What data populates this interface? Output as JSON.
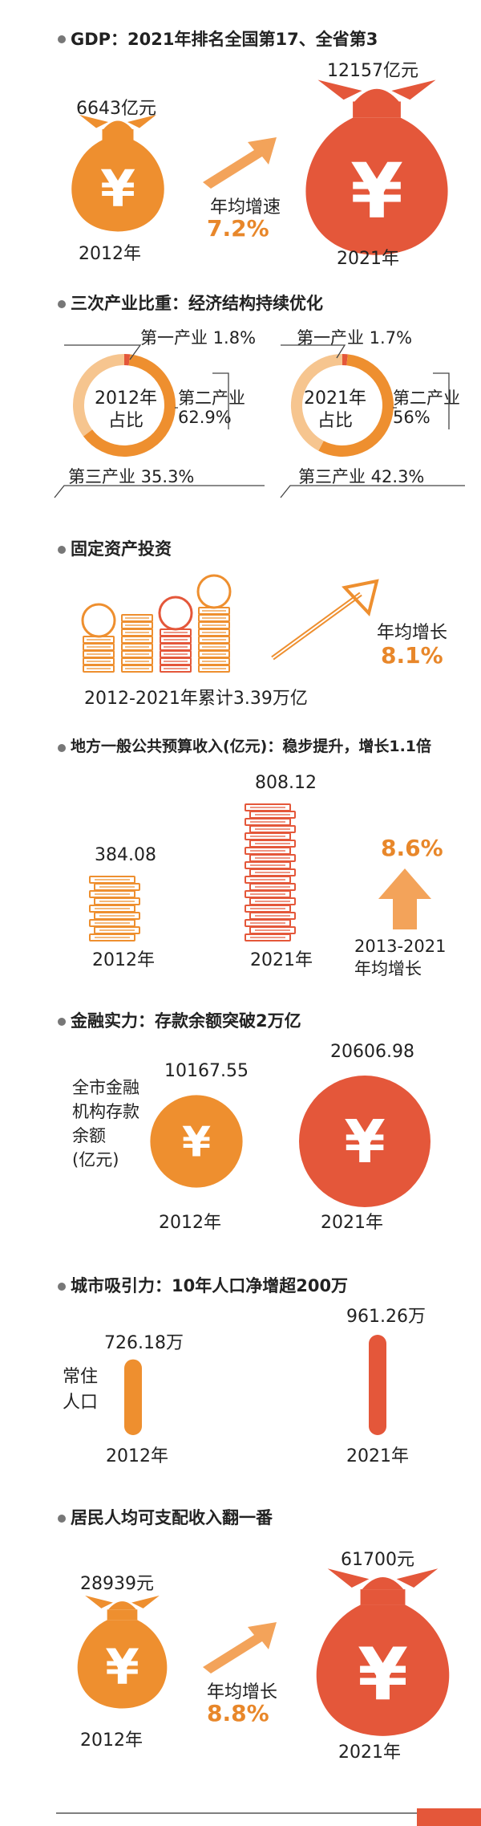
{
  "colors": {
    "orange": "#ee8f2f",
    "red": "#e4573a",
    "lightOrange": "#f3a35a",
    "gray": "#777777"
  },
  "sections": {
    "gdp": {
      "title": "GDP：2021年排名全国第17、全省第3",
      "left": {
        "value": "6643亿元",
        "year": "2012年",
        "icon": "yuan-bag-icon"
      },
      "right": {
        "value": "12157亿元",
        "year": "2021年",
        "icon": "yuan-bag-icon"
      },
      "growth_label": "年均增速",
      "growth_value": "7.2%"
    },
    "industry": {
      "title": "三次产业比重：经济结构持续优化",
      "y2012": {
        "center": [
          "2012年",
          "占比"
        ],
        "first": "第一产业  1.8%",
        "second_label": "第二产业",
        "second_value": "62.9%",
        "third": "第三产业  35.3%"
      },
      "y2021": {
        "center": [
          "2021年",
          "占比"
        ],
        "first": "第一产业  1.7%",
        "second_label": "第二产业",
        "second_value": "56%",
        "third": "第三产业  42.3%"
      }
    },
    "investment": {
      "title": "固定资产投资",
      "caption": "2012-2021年累计3.39万亿",
      "growth_label": "年均增长",
      "growth_value": "8.1%",
      "icon": "coin-stack-icon"
    },
    "budget": {
      "title": "地方一般公共预算收入(亿元)：稳步提升，增长1.1倍",
      "y2012": {
        "value": "384.08",
        "year": "2012年"
      },
      "y2021": {
        "value": "808.12",
        "year": "2021年"
      },
      "growth_value": "8.6%",
      "growth_label": [
        "2013-2021",
        "年均增长"
      ]
    },
    "finance": {
      "title": "金融实力：存款余额突破2万亿",
      "side_label": [
        "全市金融",
        "机构存款",
        "余额",
        "(亿元)"
      ],
      "y2012": {
        "value": "10167.55",
        "year": "2012年"
      },
      "y2021": {
        "value": "20606.98",
        "year": "2021年"
      }
    },
    "population": {
      "title": "城市吸引力：10年人口净增超200万",
      "side_label": [
        "常住",
        "人口"
      ],
      "y2012": {
        "value": "726.18万",
        "year": "2012年"
      },
      "y2021": {
        "value": "961.26万",
        "year": "2021年"
      }
    },
    "income": {
      "title": "居民人均可支配收入翻一番",
      "left": {
        "value": "28939元",
        "year": "2012年"
      },
      "right": {
        "value": "61700元",
        "year": "2021年"
      },
      "growth_label": "年均增长",
      "growth_value": "8.8%"
    }
  },
  "chart_data": [
    {
      "type": "bar",
      "title": "GDP：2021年排名全国第17、全省第3",
      "categories": [
        "2012年",
        "2021年"
      ],
      "values": [
        6643,
        12157
      ],
      "unit": "亿元"
    },
    {
      "type": "pie",
      "title": "三次产业比重：经济结构持续优化",
      "categories": [
        "第一产业",
        "第二产业",
        "第三产业"
      ],
      "series": [
        {
          "name": "2012年",
          "values": [
            1.8,
            62.9,
            35.3
          ]
        },
        {
          "name": "2021年",
          "values": [
            1.7,
            56,
            42.3
          ]
        }
      ]
    },
    {
      "type": "bar",
      "title": "地方一般公共预算收入(亿元)：稳步提升，增长1.1倍",
      "categories": [
        "2012年",
        "2021年"
      ],
      "values": [
        384.08,
        808.12
      ]
    },
    {
      "type": "bar",
      "title": "金融实力：存款余额突破2万亿",
      "categories": [
        "2012年",
        "2021年"
      ],
      "values": [
        10167.55,
        20606.98
      ]
    },
    {
      "type": "bar",
      "title": "城市吸引力：10年人口净增超200万",
      "categories": [
        "2012年",
        "2021年"
      ],
      "values": [
        726.18,
        961.26
      ],
      "unit": "万"
    },
    {
      "type": "bar",
      "title": "居民人均可支配收入翻一番",
      "categories": [
        "2012年",
        "2021年"
      ],
      "values": [
        28939,
        61700
      ],
      "unit": "元"
    }
  ]
}
